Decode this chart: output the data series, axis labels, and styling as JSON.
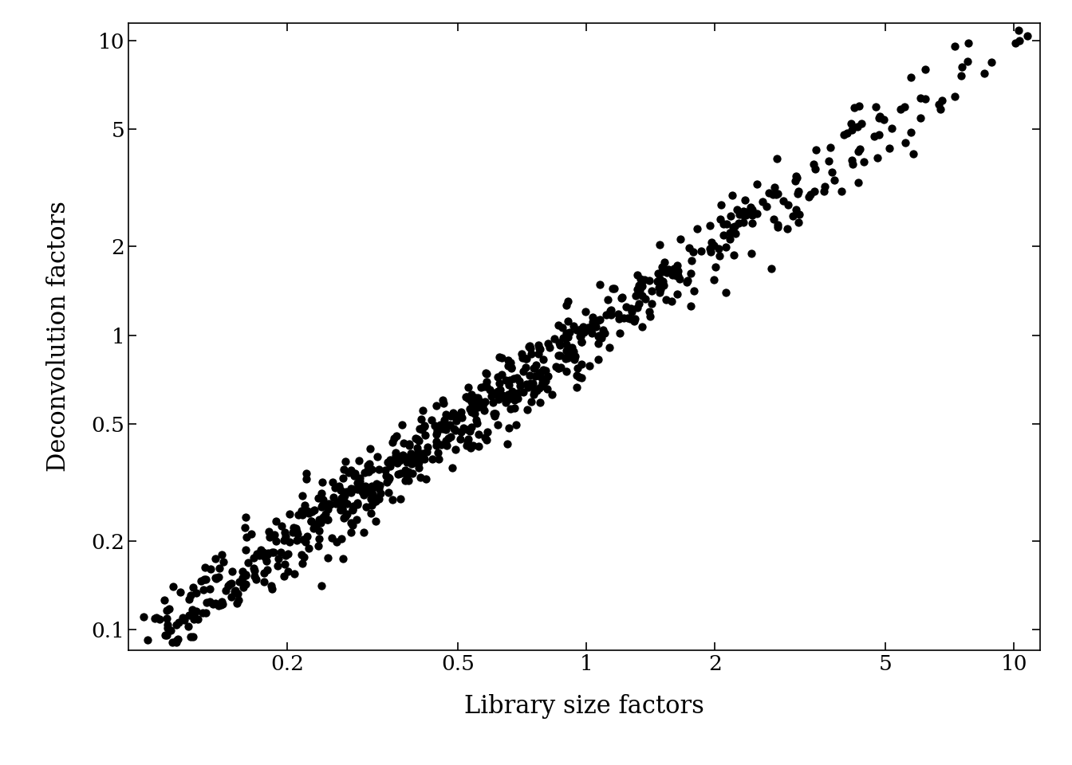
{
  "xlabel": "Library size factors",
  "ylabel": "Deconvolution factors",
  "background_color": "#ffffff",
  "point_color": "#000000",
  "point_size": 55,
  "xticks": [
    0.2,
    0.5,
    1.0,
    2.0,
    5.0,
    10.0
  ],
  "yticks": [
    0.1,
    0.2,
    0.5,
    1.0,
    2.0,
    5.0,
    10.0
  ],
  "xlabel_fontsize": 22,
  "ylabel_fontsize": 22,
  "tick_fontsize": 19,
  "xlim_low": 0.085,
  "xlim_high": 11.5,
  "ylim_low": 0.085,
  "ylim_high": 11.5
}
